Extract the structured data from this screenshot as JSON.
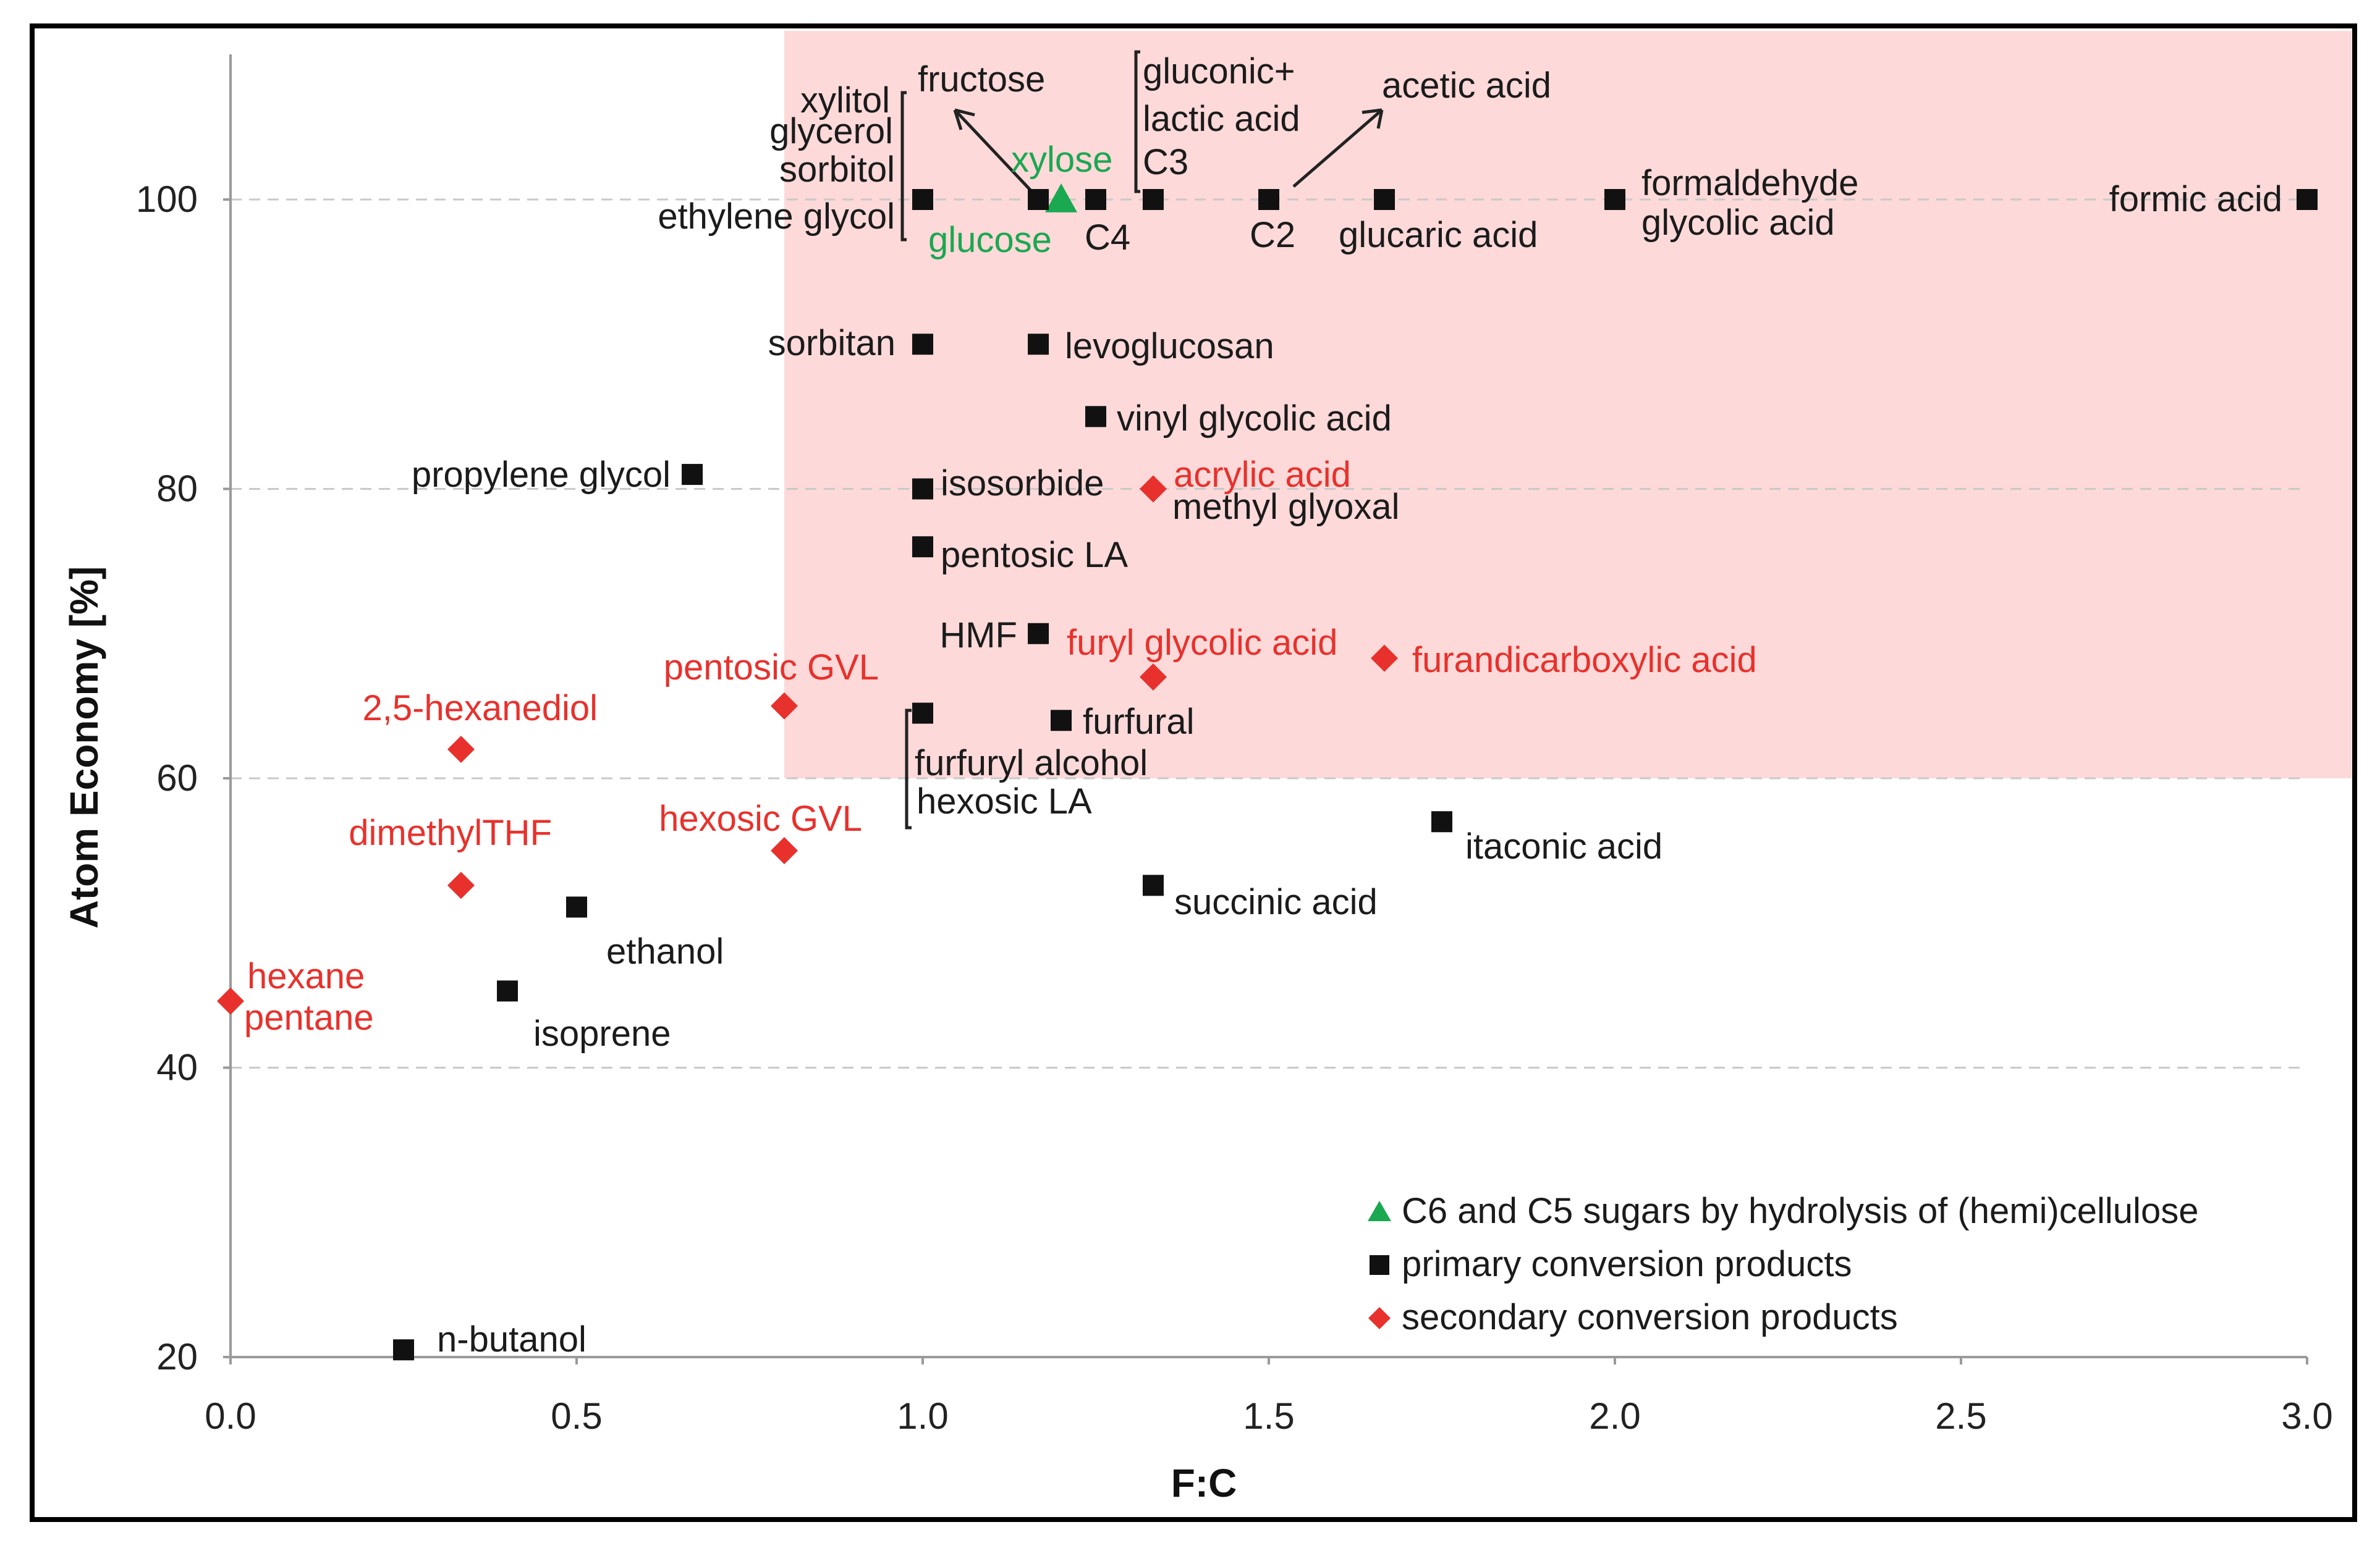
{
  "chart_data": {
    "type": "scatter",
    "title": "",
    "xlabel": "F:C",
    "ylabel": "Atom Economy [%]",
    "xlim": [
      0.0,
      3.0
    ],
    "ylim": [
      20,
      110
    ],
    "x_ticks": [
      "0.0",
      "0.5",
      "1.0",
      "1.5",
      "2.0",
      "2.5",
      "3.0"
    ],
    "y_ticks": [
      "20",
      "40",
      "60",
      "80",
      "100"
    ],
    "gridlines": "horizontal dashed",
    "highlight_region": {
      "x_from": 0.8,
      "x_to": 3.0,
      "y_from": 60,
      "y_to": 110,
      "color": "#fdd9d9"
    },
    "legend_position": "bottom-right",
    "series": [
      {
        "name": "C6 and C5 sugars by hydrolysis of (hemi)cellulose",
        "marker": "triangle",
        "color": "#1aa851",
        "points": [
          {
            "x": 1.2,
            "y": 100
          }
        ]
      },
      {
        "name": "primary conversion products",
        "marker": "square",
        "color": "#111111",
        "points": [
          {
            "x": 1.0,
            "y": 100
          },
          {
            "x": 1.167,
            "y": 100
          },
          {
            "x": 1.25,
            "y": 100
          },
          {
            "x": 1.333,
            "y": 100
          },
          {
            "x": 1.5,
            "y": 100
          },
          {
            "x": 1.667,
            "y": 100
          },
          {
            "x": 2.0,
            "y": 100
          },
          {
            "x": 3.0,
            "y": 100
          },
          {
            "x": 1.0,
            "y": 90
          },
          {
            "x": 1.167,
            "y": 90
          },
          {
            "x": 1.25,
            "y": 85
          },
          {
            "x": 0.667,
            "y": 81
          },
          {
            "x": 1.0,
            "y": 80
          },
          {
            "x": 1.0,
            "y": 76
          },
          {
            "x": 1.167,
            "y": 70
          },
          {
            "x": 1.0,
            "y": 64.5
          },
          {
            "x": 1.2,
            "y": 64
          },
          {
            "x": 1.75,
            "y": 57
          },
          {
            "x": 1.333,
            "y": 52.6
          },
          {
            "x": 0.5,
            "y": 51.1
          },
          {
            "x": 0.4,
            "y": 45.3
          },
          {
            "x": 0.25,
            "y": 20.5
          }
        ]
      },
      {
        "name": "secondary conversion products",
        "marker": "diamond",
        "color": "#e8312c",
        "points": [
          {
            "x": 1.333,
            "y": 80
          },
          {
            "x": 1.333,
            "y": 67
          },
          {
            "x": 1.667,
            "y": 68.3
          },
          {
            "x": 0.8,
            "y": 65
          },
          {
            "x": 0.333,
            "y": 62
          },
          {
            "x": 0.8,
            "y": 55
          },
          {
            "x": 0.333,
            "y": 52.6
          },
          {
            "x": 0.0,
            "y": 44.6
          }
        ]
      }
    ],
    "annotations": [
      {
        "text": "fructose",
        "color": "black"
      },
      {
        "text": "xylitol",
        "color": "black"
      },
      {
        "text": "glycerol",
        "color": "black"
      },
      {
        "text": "sorbitol",
        "color": "black"
      },
      {
        "text": "ethylene glycol",
        "color": "black"
      },
      {
        "text": "xylose",
        "color": "green"
      },
      {
        "text": "glucose",
        "color": "green"
      },
      {
        "text": "C4",
        "color": "black"
      },
      {
        "text": "gluconic+",
        "color": "black"
      },
      {
        "text": "lactic acid",
        "color": "black"
      },
      {
        "text": "C3",
        "color": "black"
      },
      {
        "text": "acetic acid",
        "color": "black"
      },
      {
        "text": "C2",
        "color": "black"
      },
      {
        "text": "glucaric acid",
        "color": "black"
      },
      {
        "text": "formaldehyde",
        "color": "black"
      },
      {
        "text": "glycolic acid",
        "color": "black"
      },
      {
        "text": "formic acid",
        "color": "black"
      },
      {
        "text": "sorbitan",
        "color": "black"
      },
      {
        "text": "levoglucosan",
        "color": "black"
      },
      {
        "text": "vinyl glycolic acid",
        "color": "black"
      },
      {
        "text": "propylene glycol",
        "color": "black"
      },
      {
        "text": "isosorbide",
        "color": "black"
      },
      {
        "text": "acrylic acid",
        "color": "red"
      },
      {
        "text": "methyl glyoxal",
        "color": "black"
      },
      {
        "text": "pentosic LA",
        "color": "black"
      },
      {
        "text": "HMF",
        "color": "black"
      },
      {
        "text": "furyl glycolic acid",
        "color": "red"
      },
      {
        "text": "furandicarboxylic acid",
        "color": "red"
      },
      {
        "text": "pentosic GVL",
        "color": "red"
      },
      {
        "text": "2,5-hexanediol",
        "color": "red"
      },
      {
        "text": "furfural",
        "color": "black"
      },
      {
        "text": "furfuryl alcohol",
        "color": "black"
      },
      {
        "text": "hexosic LA",
        "color": "black"
      },
      {
        "text": "dimethylTHF",
        "color": "red"
      },
      {
        "text": "hexosic GVL",
        "color": "red"
      },
      {
        "text": "itaconic acid",
        "color": "black"
      },
      {
        "text": "succinic acid",
        "color": "black"
      },
      {
        "text": "ethanol",
        "color": "black"
      },
      {
        "text": "hexane",
        "color": "red"
      },
      {
        "text": "pentane",
        "color": "red"
      },
      {
        "text": "isoprene",
        "color": "black"
      },
      {
        "text": "n-butanol",
        "color": "black"
      }
    ]
  }
}
